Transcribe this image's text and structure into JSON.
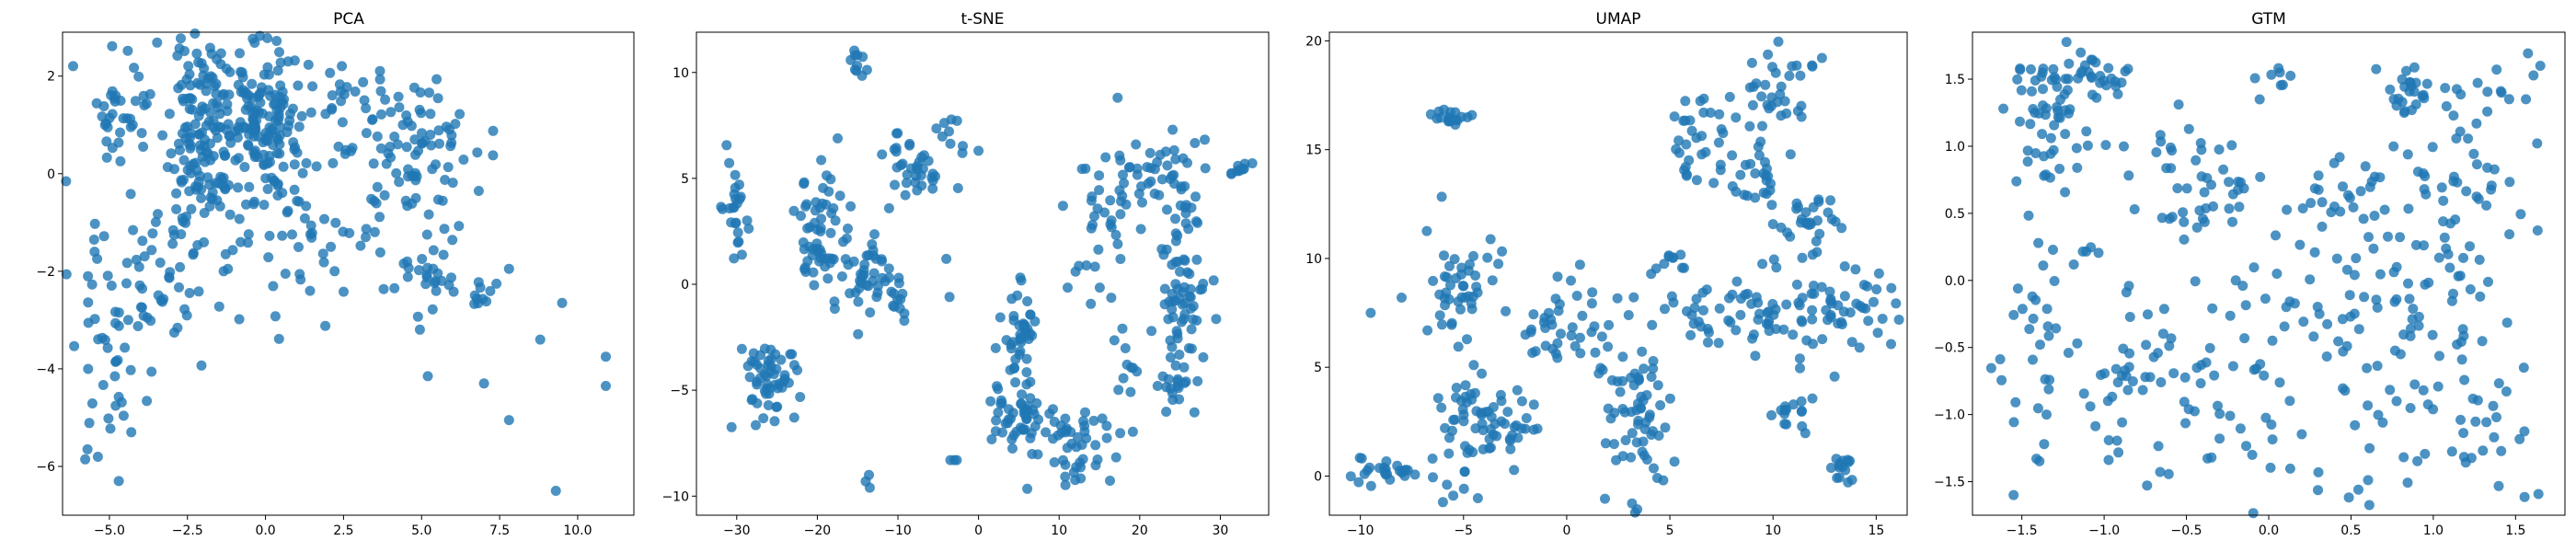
{
  "figure": {
    "point_color": "#1f77b4"
  },
  "chart_data": [
    {
      "type": "scatter",
      "title": "PCA",
      "xlim": [
        -6.5,
        11.8
      ],
      "ylim": [
        -7.0,
        2.9
      ],
      "xticks": [
        -5.0,
        -2.5,
        0.0,
        2.5,
        5.0,
        7.5,
        10.0
      ],
      "xtick_labels": [
        "−5.0",
        "−2.5",
        "0.0",
        "2.5",
        "5.0",
        "7.5",
        "10.0"
      ],
      "yticks": [
        -6,
        -4,
        -2,
        0,
        2
      ],
      "ytick_labels": [
        "−6",
        "−4",
        "−2",
        "0",
        "2"
      ],
      "seed": 11,
      "clusters": [
        {
          "cx": -2.0,
          "cy": 0.8,
          "sx": 0.55,
          "sy": 1.1,
          "n": 160
        },
        {
          "cx": 0.0,
          "cy": 1.0,
          "sx": 0.55,
          "sy": 0.8,
          "n": 130
        },
        {
          "cx": -4.6,
          "cy": 1.2,
          "sx": 0.45,
          "sy": 0.7,
          "n": 35
        },
        {
          "cx": 2.4,
          "cy": 1.3,
          "sx": 0.9,
          "sy": 0.6,
          "n": 40
        },
        {
          "cx": 5.0,
          "cy": 0.7,
          "sx": 0.9,
          "sy": 0.7,
          "n": 70
        },
        {
          "cx": -3.5,
          "cy": -1.8,
          "sx": 1.4,
          "sy": 1.2,
          "n": 70
        },
        {
          "cx": 1.5,
          "cy": -1.2,
          "sx": 1.5,
          "sy": 1.0,
          "n": 55
        },
        {
          "cx": 5.2,
          "cy": -2.0,
          "sx": 0.5,
          "sy": 0.4,
          "n": 25
        },
        {
          "cx": 6.9,
          "cy": -2.4,
          "sx": 0.3,
          "sy": 0.3,
          "n": 10
        },
        {
          "cx": -5.0,
          "cy": -4.0,
          "sx": 0.6,
          "sy": 0.8,
          "n": 25
        }
      ],
      "points": [
        [
          -5.7,
          -5.65
        ],
        [
          -4.7,
          -6.3
        ],
        [
          -4.3,
          -5.3
        ],
        [
          10.9,
          -3.75
        ],
        [
          10.9,
          -4.35
        ],
        [
          9.3,
          -6.5
        ],
        [
          9.5,
          -2.65
        ],
        [
          7.8,
          -5.05
        ],
        [
          7.0,
          -4.3
        ],
        [
          5.2,
          -4.15
        ],
        [
          8.8,
          -3.4
        ],
        [
          7.8,
          -1.95
        ]
      ]
    },
    {
      "type": "scatter",
      "title": "t-SNE",
      "xlim": [
        -35.0,
        36.0
      ],
      "ylim": [
        -10.9,
        11.9
      ],
      "xticks": [
        -30,
        -20,
        -10,
        0,
        10,
        20,
        30
      ],
      "xtick_labels": [
        "−30",
        "−20",
        "−10",
        "0",
        "10",
        "20",
        "30"
      ],
      "yticks": [
        -10,
        -5,
        0,
        5,
        10
      ],
      "ytick_labels": [
        "−10",
        "−5",
        "0",
        "5",
        "10"
      ],
      "seed": 23,
      "clusters": [
        {
          "cx": -30.5,
          "cy": 3.5,
          "sx": 0.9,
          "sy": 1.5,
          "n": 25
        },
        {
          "cx": -26.0,
          "cy": -4.5,
          "sx": 1.8,
          "sy": 1.0,
          "n": 55
        },
        {
          "cx": -19.5,
          "cy": 2.3,
          "sx": 1.6,
          "sy": 1.4,
          "n": 60
        },
        {
          "cx": -14.0,
          "cy": 0.2,
          "sx": 1.7,
          "sy": 1.0,
          "n": 40
        },
        {
          "cx": -15.0,
          "cy": 10.2,
          "sx": 0.5,
          "sy": 0.4,
          "n": 10
        },
        {
          "cx": -8.0,
          "cy": 5.5,
          "sx": 2.0,
          "sy": 0.8,
          "n": 35
        },
        {
          "cx": -4.0,
          "cy": 7.5,
          "sx": 0.6,
          "sy": 0.6,
          "n": 8
        },
        {
          "cx": -10.0,
          "cy": -0.5,
          "sx": 0.5,
          "sy": 0.6,
          "n": 10
        },
        {
          "cx": 5.0,
          "cy": -2.5,
          "sx": 1.0,
          "sy": 1.2,
          "n": 40
        },
        {
          "cx": 5.0,
          "cy": -6.5,
          "sx": 1.6,
          "sy": 0.9,
          "n": 50
        },
        {
          "cx": 12.0,
          "cy": -7.8,
          "sx": 2.5,
          "sy": 1.2,
          "n": 45
        },
        {
          "cx": 15.0,
          "cy": 3.5,
          "sx": 2.0,
          "sy": 1.6,
          "n": 40
        },
        {
          "cx": 22.0,
          "cy": 5.5,
          "sx": 2.5,
          "sy": 0.8,
          "n": 35
        },
        {
          "cx": 25.5,
          "cy": 0.0,
          "sx": 1.5,
          "sy": 2.0,
          "n": 70
        },
        {
          "cx": 24.5,
          "cy": -4.5,
          "sx": 0.8,
          "sy": 0.8,
          "n": 20
        },
        {
          "cx": 32.5,
          "cy": 5.5,
          "sx": 0.7,
          "sy": 0.4,
          "n": 10
        },
        {
          "cx": 18.0,
          "cy": -3.5,
          "sx": 0.8,
          "sy": 1.0,
          "n": 10
        }
      ],
      "points": [
        [
          -14.0,
          -9.3
        ],
        [
          -13.5,
          -9.6
        ],
        [
          -13.6,
          -9.0
        ],
        [
          -3.5,
          -8.3
        ],
        [
          -3.0,
          -8.3
        ],
        [
          -2.7,
          -8.3
        ],
        [
          -4.0,
          1.2
        ],
        [
          -3.6,
          -0.6
        ],
        [
          -2.0,
          6.2
        ],
        [
          0.0,
          6.3
        ]
      ]
    },
    {
      "type": "scatter",
      "title": "UMAP",
      "xlim": [
        -11.5,
        16.5
      ],
      "ylim": [
        -1.8,
        20.4
      ],
      "xticks": [
        -10,
        -5,
        0,
        5,
        10,
        15
      ],
      "xtick_labels": [
        "−10",
        "−5",
        "0",
        "5",
        "10",
        "15"
      ],
      "yticks": [
        0,
        5,
        10,
        15,
        20
      ],
      "ytick_labels": [
        "0",
        "5",
        "10",
        "15",
        "20"
      ],
      "seed": 37,
      "clusters": [
        {
          "cx": -8.8,
          "cy": 0.3,
          "sx": 0.8,
          "sy": 0.3,
          "n": 25
        },
        {
          "cx": -5.5,
          "cy": 16.5,
          "sx": 0.4,
          "sy": 0.2,
          "n": 20
        },
        {
          "cx": -5.0,
          "cy": 8.8,
          "sx": 0.9,
          "sy": 1.3,
          "n": 45
        },
        {
          "cx": -3.5,
          "cy": 2.3,
          "sx": 1.2,
          "sy": 1.2,
          "n": 55
        },
        {
          "cx": -5.0,
          "cy": 3.0,
          "sx": 0.4,
          "sy": 1.5,
          "n": 15
        },
        {
          "cx": 0.0,
          "cy": 6.8,
          "sx": 1.2,
          "sy": 1.0,
          "n": 40
        },
        {
          "cx": 3.5,
          "cy": 1.5,
          "sx": 1.0,
          "sy": 1.3,
          "n": 40
        },
        {
          "cx": 3.5,
          "cy": 4.5,
          "sx": 0.8,
          "sy": 1.0,
          "n": 25
        },
        {
          "cx": 6.5,
          "cy": 15.5,
          "sx": 1.0,
          "sy": 1.3,
          "n": 35
        },
        {
          "cx": 10.5,
          "cy": 17.5,
          "sx": 1.0,
          "sy": 1.3,
          "n": 35
        },
        {
          "cx": 9.2,
          "cy": 13.5,
          "sx": 0.6,
          "sy": 0.8,
          "n": 20
        },
        {
          "cx": 11.5,
          "cy": 11.8,
          "sx": 1.0,
          "sy": 0.8,
          "n": 30
        },
        {
          "cx": 7.5,
          "cy": 7.5,
          "sx": 1.8,
          "sy": 0.7,
          "n": 40
        },
        {
          "cx": 12.5,
          "cy": 7.5,
          "sx": 2.0,
          "sy": 1.0,
          "n": 70
        },
        {
          "cx": 11.0,
          "cy": 3.0,
          "sx": 0.5,
          "sy": 0.6,
          "n": 15
        },
        {
          "cx": 13.5,
          "cy": 0.3,
          "sx": 0.3,
          "sy": 0.4,
          "n": 15
        },
        {
          "cx": 5.0,
          "cy": 9.8,
          "sx": 0.5,
          "sy": 0.3,
          "n": 10
        }
      ],
      "points": [
        [
          -6.5,
          0.8
        ],
        [
          -6.0,
          -1.2
        ],
        [
          -5.5,
          -0.9
        ],
        [
          -5.8,
          -0.4
        ],
        [
          -9.5,
          7.5
        ],
        [
          -8.0,
          8.2
        ],
        [
          -2.0,
          6.5
        ],
        [
          14.0,
          9.5
        ]
      ]
    },
    {
      "type": "scatter",
      "title": "GTM",
      "xlim": [
        -1.8,
        1.8
      ],
      "ylim": [
        -1.75,
        1.85
      ],
      "xticks": [
        -1.5,
        -1.0,
        -0.5,
        0.0,
        0.5,
        1.0,
        1.5
      ],
      "xtick_labels": [
        "−1.5",
        "−1.0",
        "−0.5",
        "0.0",
        "0.5",
        "1.0",
        "1.5"
      ],
      "yticks": [
        -1.5,
        -1.0,
        -0.5,
        0.0,
        0.5,
        1.0,
        1.5
      ],
      "ytick_labels": [
        "−1.5",
        "−1.0",
        "−0.5",
        "0.0",
        "0.5",
        "1.0",
        "1.5"
      ],
      "seed": 53,
      "clusters": [
        {
          "cx": -1.35,
          "cy": 1.2,
          "sx": 0.12,
          "sy": 0.25,
          "n": 60
        },
        {
          "cx": -1.05,
          "cy": 1.5,
          "sx": 0.12,
          "sy": 0.08,
          "n": 25
        },
        {
          "cx": -0.45,
          "cy": 0.9,
          "sx": 0.2,
          "sy": 0.25,
          "n": 25
        },
        {
          "cx": 0.0,
          "cy": 1.5,
          "sx": 0.05,
          "sy": 0.07,
          "n": 8
        },
        {
          "cx": 0.85,
          "cy": 1.45,
          "sx": 0.1,
          "sy": 0.1,
          "n": 25
        },
        {
          "cx": 1.35,
          "cy": 1.45,
          "sx": 0.15,
          "sy": 0.1,
          "n": 12
        },
        {
          "cx": -0.3,
          "cy": 0.6,
          "sx": 0.15,
          "sy": 0.15,
          "n": 20
        },
        {
          "cx": 0.3,
          "cy": 0.6,
          "sx": 0.2,
          "sy": 0.15,
          "n": 20
        },
        {
          "cx": 0.95,
          "cy": 0.3,
          "sx": 0.3,
          "sy": 0.4,
          "n": 55
        },
        {
          "cx": 0.6,
          "cy": 0.0,
          "sx": 0.25,
          "sy": 0.4,
          "n": 30
        },
        {
          "cx": -1.4,
          "cy": -0.5,
          "sx": 0.12,
          "sy": 0.4,
          "n": 25
        },
        {
          "cx": -0.7,
          "cy": -0.8,
          "sx": 0.35,
          "sy": 0.45,
          "n": 70
        },
        {
          "cx": 0.2,
          "cy": -0.8,
          "sx": 0.4,
          "sy": 0.5,
          "n": 50
        },
        {
          "cx": 1.1,
          "cy": -0.9,
          "sx": 0.3,
          "sy": 0.45,
          "n": 45
        },
        {
          "cx": -1.0,
          "cy": 0.2,
          "sx": 0.1,
          "sy": 0.05,
          "n": 6
        },
        {
          "cx": 1.3,
          "cy": 0.9,
          "sx": 0.15,
          "sy": 0.25,
          "n": 15
        }
      ],
      "points": [
        [
          -1.55,
          -1.6
        ],
        [
          -1.35,
          -1.0
        ],
        [
          0.05,
          0.05
        ],
        [
          -0.2,
          0.0
        ],
        [
          1.55,
          -0.65
        ],
        [
          -0.1,
          -1.3
        ],
        [
          0.45,
          0.7
        ],
        [
          1.65,
          1.6
        ]
      ]
    }
  ]
}
